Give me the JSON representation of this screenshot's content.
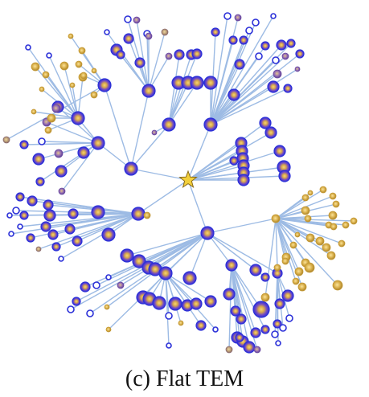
{
  "figure": {
    "caption": "(c) Flat TEM",
    "colors": {
      "edge": "#9dbbe4",
      "node_blue_ring": "#3a36d6",
      "node_blue_core": "#d9b35a",
      "node_gold": "#c9a13a",
      "node_purple": "#7b5aa8",
      "root_star": "#f2cf3b"
    },
    "root_icon": "star-icon"
  }
}
